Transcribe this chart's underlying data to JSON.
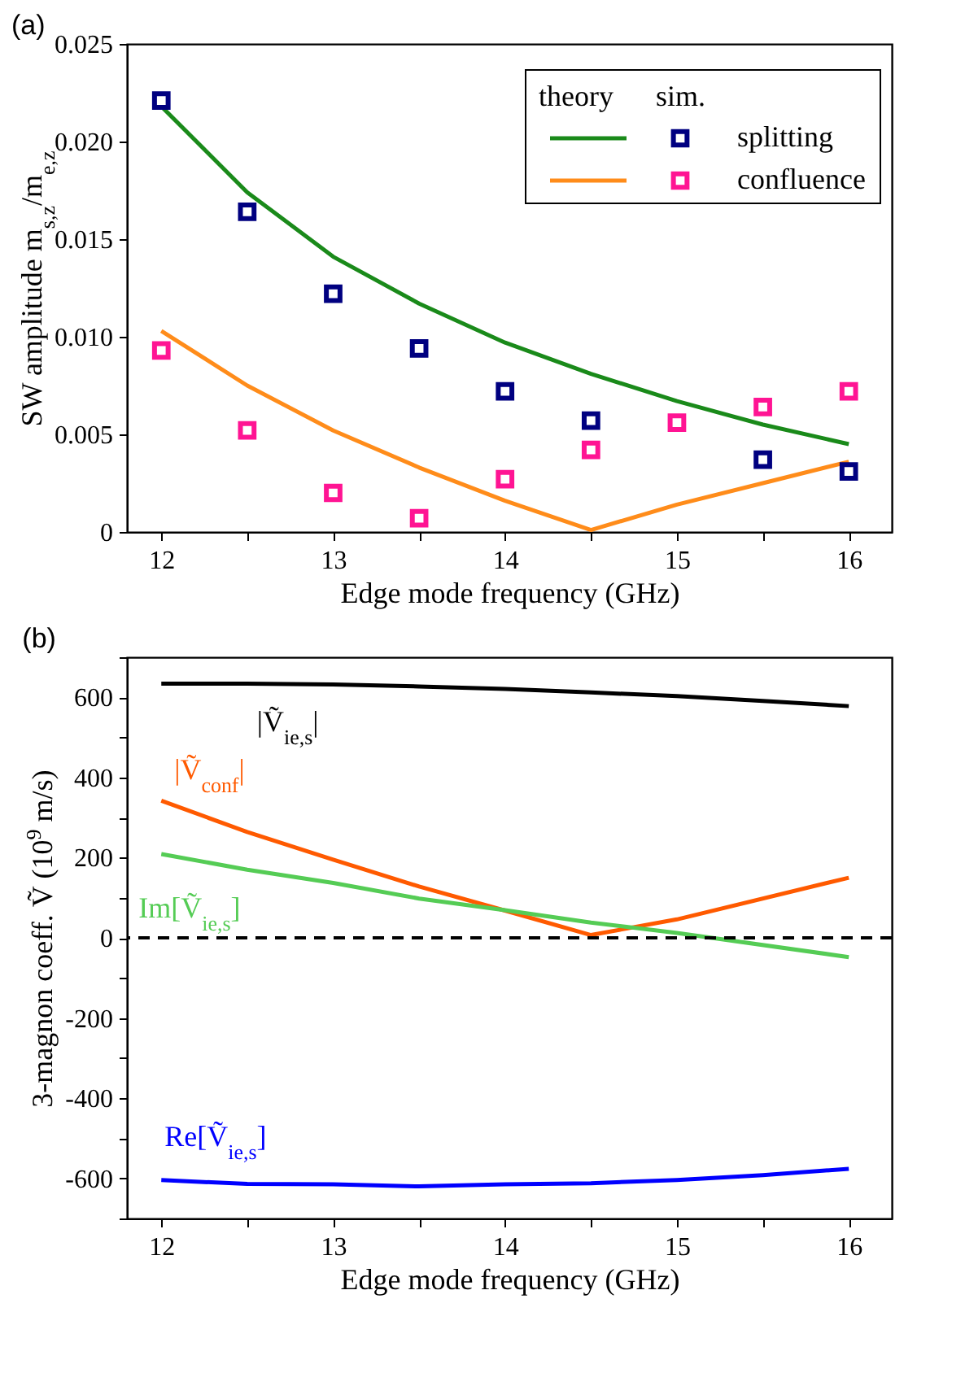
{
  "chart_data": [
    {
      "type": "line",
      "title": "(a)",
      "xlabel": "Edge mode frequency (GHz)",
      "ylabel": "SW amplitude m$_{s,z}$/m$_{e,z}$",
      "legend_title": "theory sim.",
      "legend": "top right",
      "xlim": [
        11.8,
        16.25
      ],
      "xticks": [
        12,
        {
          "value": 12.5,
          "label": null
        },
        13,
        {
          "value": 13.5,
          "label": null
        },
        14,
        {
          "value": 14.5,
          "label": null
        },
        15,
        {
          "value": 15.5,
          "label": null
        },
        16
      ],
      "ylim": [
        0,
        0.025
      ],
      "yticks": [
        0,
        0.005,
        {
          "value": 0.01,
          "label": "0.010"
        },
        0.015,
        {
          "value": 0.02,
          "label": "0.020"
        },
        0.025
      ],
      "series": [
        {
          "color": "#1a8a1a",
          "x": [
            12,
            12.5,
            13,
            13.5,
            14,
            14.5,
            15,
            15.5,
            16
          ],
          "values": [
            0.0218,
            0.0174,
            0.0141,
            0.0117,
            0.0097,
            0.0081,
            0.0067,
            0.0055,
            0.0045
          ]
        },
        {
          "color": "#ff8c1a",
          "x": [
            12,
            12.5,
            13,
            13.5,
            14,
            14.5,
            15,
            15.5,
            16
          ],
          "values": [
            0.0103,
            0.0075,
            0.0052,
            0.0033,
            0.0016,
            0.0001,
            0.0014,
            0.0025,
            0.0036
          ]
        },
        {
          "name": "splitting",
          "type": "scatter",
          "marker": "square",
          "color": "#000080",
          "x": [
            12,
            12.5,
            13,
            13.5,
            14,
            14.5,
            15.5,
            16
          ],
          "values": [
            0.0221,
            0.0164,
            0.0122,
            0.0094,
            0.0072,
            0.0057,
            0.0037,
            0.0031
          ]
        },
        {
          "name": "confluence",
          "type": "scatter",
          "marker": "square",
          "color": "#ff1493",
          "x": [
            12,
            12.5,
            13,
            13.5,
            14,
            14.5,
            15,
            15.5,
            16
          ],
          "values": [
            0.0093,
            0.0052,
            0.002,
            0.0007,
            0.0027,
            0.0042,
            0.0056,
            0.0064,
            0.0072
          ]
        }
      ]
    },
    {
      "type": "line",
      "title": "(b)",
      "xlabel": "Edge mode frequency (GHz)",
      "ylabel": "3-magnon coeff. Ṽ (10$^{9}$ m/s)",
      "xlim": [
        11.8,
        16.25
      ],
      "xticks": [
        12,
        {
          "value": 12.5,
          "label": null
        },
        13,
        {
          "value": 13.5,
          "label": null
        },
        14,
        {
          "value": 14.5,
          "label": null
        },
        15,
        {
          "value": 15.5,
          "label": null
        },
        16
      ],
      "ylim": [
        -700,
        700
      ],
      "yticks": [
        {
          "value": -700,
          "label": null
        },
        -600,
        {
          "value": -500,
          "label": null
        },
        -400,
        {
          "value": -300,
          "label": null
        },
        -200,
        {
          "value": -100,
          "label": null
        },
        0,
        {
          "value": 100,
          "label": null
        },
        200,
        {
          "value": 300,
          "label": null
        },
        400,
        {
          "value": 500,
          "label": null
        },
        600,
        {
          "value": 700,
          "label": null
        }
      ],
      "ref_lines": [
        {
          "axis": "y",
          "value": 0,
          "color": "#000000",
          "line_style": "dashed"
        }
      ],
      "series": [
        {
          "name": "|Ṽ$_{ie,s}$|",
          "color": "#000000",
          "x": [
            12,
            12.5,
            13,
            13.5,
            14,
            14.5,
            15,
            15.5,
            16
          ],
          "values": [
            634,
            634,
            632,
            627,
            621,
            612,
            603,
            591,
            578
          ]
        },
        {
          "name": "|Ṽ$_{conf}$|",
          "color": "#ff5a00",
          "x": [
            12,
            12.5,
            13,
            13.5,
            14,
            14.5,
            15,
            16
          ],
          "values": [
            342,
            264,
            195,
            128,
            68,
            7,
            46,
            150
          ]
        },
        {
          "name": "Im[Ṽ$_{ie,s}$]",
          "color": "#55cc55",
          "x": [
            12,
            12.5,
            13,
            13.5,
            14,
            14.5,
            15,
            16
          ],
          "values": [
            209,
            170,
            137,
            98,
            69,
            38,
            12,
            -48
          ]
        },
        {
          "name": "Re[Ṽ$_{ie,s}$]",
          "color": "#0000ff",
          "x": [
            12,
            12.5,
            13,
            13.5,
            14,
            14.5,
            15,
            15.5,
            16
          ],
          "values": [
            -604,
            -614,
            -615,
            -620,
            -615,
            -612,
            -604,
            -592,
            -576
          ]
        }
      ]
    }
  ]
}
